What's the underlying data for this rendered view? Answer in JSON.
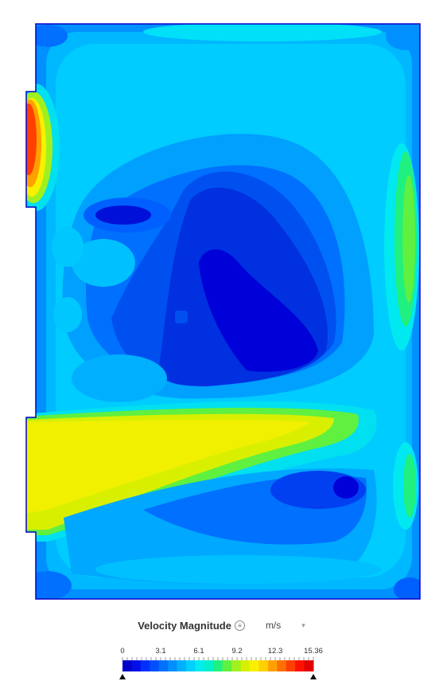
{
  "legend": {
    "title": "Velocity Magnitude",
    "unit": "m/s",
    "ticks": [
      "0",
      "3.1",
      "6.1",
      "9.2",
      "12.3",
      "15.36"
    ]
  },
  "chart_data": {
    "type": "heatmap",
    "quantity": "Velocity Magnitude",
    "unit": "m/s",
    "range": [
      0,
      15.36
    ],
    "colormap": [
      "#0000c8",
      "#0010e6",
      "#0030ff",
      "#0050ff",
      "#0070ff",
      "#0090ff",
      "#00b0ff",
      "#00d0ff",
      "#00ecf0",
      "#00f0c8",
      "#20f080",
      "#60f040",
      "#a0f020",
      "#d8f000",
      "#f8f000",
      "#ffd000",
      "#ffa000",
      "#ff7000",
      "#ff4000",
      "#ff1000",
      "#e00000"
    ],
    "colors": {
      "low": "#0000d8",
      "mid": "#00c8ff",
      "high_mid": "#e6f000",
      "high": "#ff2000"
    }
  }
}
